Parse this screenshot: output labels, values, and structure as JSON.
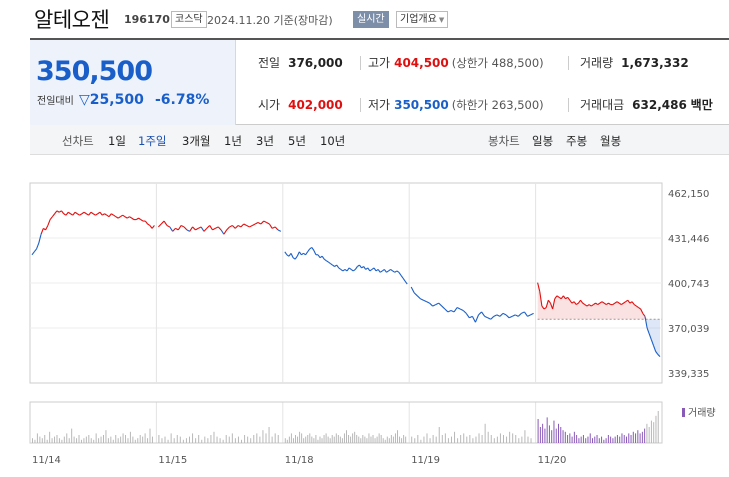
{
  "header": {
    "stock_name": "알테오젠",
    "stock_code": "196170",
    "market_badge": "코스닥",
    "date_text": "2024.11.20 기준(장마감)",
    "realtime_badge": "실시간",
    "company_overview_label": "기업개요"
  },
  "summary": {
    "price": "350,500",
    "change_label": "전일대비",
    "change_value": "25,500",
    "change_pct": "-6.78%",
    "prev_close_label": "전일",
    "prev_close": "376,000",
    "high_label": "고가",
    "high": "404,500",
    "upper_limit_text": "(상한가 488,500)",
    "volume_label": "거래량",
    "volume": "1,673,332",
    "open_label": "시가",
    "open": "402,000",
    "low_label": "저가",
    "low": "350,500",
    "lower_limit_text": "(하한가 263,500)",
    "amount_label": "거래대금",
    "amount": "632,486",
    "amount_unit": "백만"
  },
  "tabs": {
    "line_chart_label": "선차트",
    "line_periods": [
      "1일",
      "1주일",
      "3개월",
      "1년",
      "3년",
      "5년",
      "10년"
    ],
    "active_period": "1주일",
    "candle_chart_label": "봉차트",
    "candle_periods": [
      "일봉",
      "주봉",
      "월봉"
    ]
  },
  "colors": {
    "up": "#e00f0f",
    "down": "#1a5fc9",
    "price_box_bg": "#eef3fb"
  },
  "chart_data": {
    "type": "line",
    "y_ticks": [
      "462,150",
      "431,446",
      "400,743",
      "370,039",
      "339,335"
    ],
    "ylim": [
      339335,
      462150
    ],
    "x_ticks": [
      "11/14",
      "11/15",
      "11/18",
      "11/19",
      "11/20"
    ],
    "volume_label": "거래량",
    "reference_price": 376000,
    "series": [
      {
        "day": "11/14",
        "values": [
          420000,
          422000,
          424000,
          428000,
          434000,
          438000,
          437000,
          440000,
          444000,
          446000,
          448000,
          450000,
          449000,
          450000,
          448000,
          447000,
          449000,
          448000,
          447000,
          449000,
          448000,
          447000,
          448000,
          449000,
          448000,
          447000,
          449000,
          448000,
          447000,
          448000,
          449000,
          447000,
          448000,
          447000,
          446000,
          448000,
          447000,
          446000,
          445000,
          446000,
          447000,
          446000,
          445000,
          446000,
          445000,
          444000,
          444000,
          445000,
          444000,
          443000,
          443000,
          441000,
          440000,
          438000,
          440000
        ]
      },
      {
        "day": "11/15",
        "values": [
          439000,
          441000,
          443000,
          440000,
          439000,
          436000,
          438000,
          437000,
          440000,
          439000,
          437000,
          436000,
          439000,
          437000,
          438000,
          439000,
          436000,
          438000,
          440000,
          437000,
          438000,
          439000,
          437000,
          434000,
          437000,
          439000,
          440000,
          438000,
          440000,
          439000,
          441000,
          440000,
          439000,
          440000,
          441000,
          442000,
          441000,
          443000,
          442000,
          441000,
          438000,
          439000,
          437000,
          436000
        ]
      },
      {
        "day": "11/18",
        "values": [
          422000,
          420000,
          419000,
          421000,
          418000,
          417000,
          419000,
          422000,
          420000,
          421000,
          420000,
          422000,
          424000,
          425000,
          423000,
          420000,
          420000,
          418000,
          419000,
          417000,
          416000,
          415000,
          414000,
          413000,
          412000,
          413000,
          411000,
          410000,
          409000,
          410000,
          409000,
          411000,
          410000,
          409000,
          410000,
          412000,
          413000,
          411000,
          412000,
          410000,
          411000,
          409000,
          410000,
          411000,
          409000,
          410000,
          408000,
          409000,
          410000,
          408000,
          409000,
          410000,
          409000,
          408000,
          409000,
          408000,
          406000,
          404000,
          402000,
          400000
        ]
      },
      {
        "day": "11/19",
        "values": [
          398000,
          394000,
          392000,
          390000,
          389000,
          388000,
          387000,
          385000,
          386000,
          387000,
          385000,
          383000,
          381000,
          382000,
          381000,
          384000,
          383000,
          382000,
          380000,
          377000,
          378000,
          374000,
          379000,
          381000,
          378000,
          377000,
          376000,
          378000,
          379000,
          378000,
          380000,
          379000,
          377000,
          378000,
          379000,
          378000,
          380000,
          381000,
          378000,
          379000,
          380000
        ]
      },
      {
        "day": "11/20",
        "values": [
          401000,
          395000,
          385000,
          383000,
          384000,
          389000,
          387000,
          383000,
          390000,
          392000,
          391000,
          390000,
          392000,
          390000,
          391000,
          389000,
          387000,
          388000,
          386000,
          387000,
          389000,
          387000,
          386000,
          385000,
          386000,
          385000,
          386000,
          387000,
          386000,
          387000,
          388000,
          387000,
          386000,
          387000,
          386000,
          386000,
          387000,
          388000,
          387000,
          386000,
          387000,
          388000,
          389000,
          387000,
          388000,
          386000,
          385000,
          384000,
          383000,
          380000,
          378000,
          370000,
          366000,
          362000,
          358000,
          354000,
          352000,
          350500
        ]
      }
    ],
    "volume": [
      {
        "day": "11/14",
        "values": [
          3,
          2,
          6,
          4,
          3,
          5,
          2,
          7,
          3,
          4,
          5,
          3,
          2,
          4,
          6,
          3,
          9,
          4,
          3,
          5,
          2,
          3,
          4,
          5,
          3,
          2,
          6,
          3,
          4,
          5,
          8,
          3,
          4,
          2,
          5,
          3,
          4,
          6,
          5,
          3,
          7,
          4,
          2,
          3,
          5,
          4,
          6,
          3,
          9,
          4
        ]
      },
      {
        "day": "11/15",
        "values": [
          5,
          3,
          4,
          2,
          6,
          3,
          5,
          4,
          2,
          3,
          4,
          6,
          3,
          5,
          2,
          4,
          3,
          5,
          7,
          4,
          3,
          2,
          5,
          4,
          6,
          3,
          4,
          2,
          5,
          4,
          3,
          5,
          6,
          4,
          8,
          6,
          10,
          4,
          6,
          5
        ]
      },
      {
        "day": "11/18",
        "values": [
          3,
          2,
          4,
          6,
          3,
          5,
          4,
          7,
          6,
          3,
          4,
          5,
          6,
          4,
          3,
          5,
          2,
          4,
          3,
          5,
          6,
          4,
          3,
          5,
          4,
          6,
          5,
          4,
          3,
          6,
          8,
          5,
          4,
          6,
          7,
          5,
          4,
          3,
          5,
          4,
          3,
          6,
          4,
          5,
          3,
          4,
          6,
          5,
          3,
          2,
          4,
          3,
          5,
          4,
          6,
          8,
          4,
          3,
          5,
          4
        ]
      },
      {
        "day": "11/19",
        "values": [
          4,
          3,
          5,
          2,
          4,
          6,
          3,
          5,
          4,
          10,
          5,
          6,
          3,
          4,
          7,
          3,
          5,
          6,
          4,
          5,
          3,
          4,
          6,
          5,
          12,
          7,
          5,
          3,
          4,
          6,
          5,
          4,
          7,
          6,
          5,
          3,
          4,
          8,
          4,
          3
        ]
      },
      {
        "day": "11/20",
        "values": [
          15,
          10,
          12,
          9,
          16,
          11,
          8,
          14,
          9,
          12,
          10,
          8,
          7,
          5,
          6,
          4,
          7,
          5,
          3,
          4,
          5,
          3,
          4,
          6,
          3,
          4,
          5,
          3,
          4,
          2,
          3,
          5,
          4,
          3,
          4,
          5,
          4,
          6,
          5,
          4,
          6,
          5,
          7,
          6,
          8,
          6,
          7,
          9,
          12,
          10,
          14,
          13,
          17,
          20
        ]
      }
    ]
  }
}
